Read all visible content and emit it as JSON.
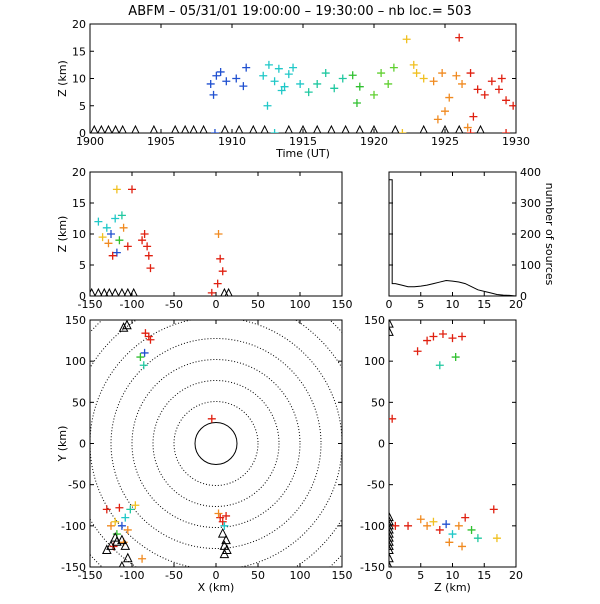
{
  "title": "ABFM – 05/31/01 19:00:00 – 19:30:00 – nb loc.=     503",
  "chart_data": [
    {
      "id": "time_height",
      "type": "scatter",
      "xlabel": "Time (UT)",
      "ylabel": "Z (km)",
      "xlim": [
        1900,
        1930
      ],
      "ylim": [
        0,
        20
      ],
      "xticks": [
        1900,
        1905,
        1910,
        1915,
        1920,
        1925,
        1930
      ],
      "yticks": [
        0,
        5,
        10,
        15,
        20
      ],
      "points": [
        {
          "x": 1908.5,
          "y": 9,
          "c": "#2050d0"
        },
        {
          "x": 1908.9,
          "y": 10.5,
          "c": "#2050d0"
        },
        {
          "x": 1909.2,
          "y": 11.2,
          "c": "#2050d0"
        },
        {
          "x": 1909.6,
          "y": 9.5,
          "c": "#2050d0"
        },
        {
          "x": 1910.3,
          "y": 10,
          "c": "#2050d0"
        },
        {
          "x": 1910.8,
          "y": 8.6,
          "c": "#2050d0"
        },
        {
          "x": 1911.0,
          "y": 12,
          "c": "#2050d0"
        },
        {
          "x": 1908.7,
          "y": 7,
          "c": "#2050d0"
        },
        {
          "x": 1912.2,
          "y": 10.5,
          "c": "#20c8c8"
        },
        {
          "x": 1912.6,
          "y": 12.5,
          "c": "#20c8c8"
        },
        {
          "x": 1913.0,
          "y": 9.5,
          "c": "#20c8c8"
        },
        {
          "x": 1913.3,
          "y": 11.8,
          "c": "#20c8c8"
        },
        {
          "x": 1913.7,
          "y": 8.5,
          "c": "#20c8c8"
        },
        {
          "x": 1914.0,
          "y": 10.8,
          "c": "#20c8c8"
        },
        {
          "x": 1914.3,
          "y": 12,
          "c": "#20c8c8"
        },
        {
          "x": 1914.8,
          "y": 9,
          "c": "#20c8c8"
        },
        {
          "x": 1912.5,
          "y": 5,
          "c": "#20c8c8"
        },
        {
          "x": 1913.5,
          "y": 7.8,
          "c": "#20c8c8"
        },
        {
          "x": 1915.4,
          "y": 7.5,
          "c": "#20c8a0"
        },
        {
          "x": 1916.0,
          "y": 9,
          "c": "#20c8a0"
        },
        {
          "x": 1916.6,
          "y": 11,
          "c": "#20c8a0"
        },
        {
          "x": 1917.2,
          "y": 8.2,
          "c": "#20c8a0"
        },
        {
          "x": 1917.8,
          "y": 10,
          "c": "#20c8a0"
        },
        {
          "x": 1918.5,
          "y": 10.6,
          "c": "#30c030"
        },
        {
          "x": 1919.0,
          "y": 8.5,
          "c": "#30c030"
        },
        {
          "x": 1918.8,
          "y": 5.5,
          "c": "#30c030"
        },
        {
          "x": 1920.0,
          "y": 7,
          "c": "#60d030"
        },
        {
          "x": 1920.5,
          "y": 11,
          "c": "#60d030"
        },
        {
          "x": 1921.0,
          "y": 9,
          "c": "#60d030"
        },
        {
          "x": 1921.4,
          "y": 12,
          "c": "#60d030"
        },
        {
          "x": 1922.3,
          "y": 17.2,
          "c": "#f0c020"
        },
        {
          "x": 1923.0,
          "y": 11,
          "c": "#f0c020"
        },
        {
          "x": 1923.5,
          "y": 10,
          "c": "#f0c020"
        },
        {
          "x": 1922.8,
          "y": 12.5,
          "c": "#f0c020"
        },
        {
          "x": 1924.2,
          "y": 9.5,
          "c": "#f08a20"
        },
        {
          "x": 1924.8,
          "y": 11,
          "c": "#f08a20"
        },
        {
          "x": 1925.3,
          "y": 6.5,
          "c": "#f08a20"
        },
        {
          "x": 1925.8,
          "y": 10.5,
          "c": "#f08a20"
        },
        {
          "x": 1926.2,
          "y": 9,
          "c": "#f08a20"
        },
        {
          "x": 1924.5,
          "y": 2.5,
          "c": "#f08a20"
        },
        {
          "x": 1925.0,
          "y": 4,
          "c": "#f08a20"
        },
        {
          "x": 1926.6,
          "y": 1,
          "c": "#f08a20"
        },
        {
          "x": 1926.0,
          "y": 17.5,
          "c": "#e02010"
        },
        {
          "x": 1926.8,
          "y": 11,
          "c": "#e02010"
        },
        {
          "x": 1927.3,
          "y": 8,
          "c": "#e02010"
        },
        {
          "x": 1927.8,
          "y": 7,
          "c": "#e02010"
        },
        {
          "x": 1928.3,
          "y": 9.5,
          "c": "#e02010"
        },
        {
          "x": 1928.8,
          "y": 8,
          "c": "#e02010"
        },
        {
          "x": 1929.3,
          "y": 6,
          "c": "#e02010"
        },
        {
          "x": 1929.8,
          "y": 5,
          "c": "#e02010"
        },
        {
          "x": 1929.0,
          "y": 10,
          "c": "#e02010"
        },
        {
          "x": 1927.0,
          "y": 3,
          "c": "#e02010"
        },
        {
          "x": 1908.8,
          "y": 0,
          "c": "#2050d0"
        },
        {
          "x": 1913.0,
          "y": 0,
          "c": "#20c8c8"
        },
        {
          "x": 1922.0,
          "y": 0,
          "c": "#f0c020"
        },
        {
          "x": 1926.8,
          "y": 0,
          "c": "#e02010"
        },
        {
          "x": 1929.3,
          "y": 0,
          "c": "#e02010"
        }
      ],
      "triangles": [
        1900.3,
        1900.8,
        1901.3,
        1901.8,
        1902.3,
        1903.2,
        1904.5,
        1906.0,
        1906.7,
        1907.3,
        1908.0,
        1909.5,
        1910.5,
        1911.5,
        1912.3,
        1914.0,
        1915.0,
        1916.0,
        1917.0,
        1918.0,
        1919.0,
        1920.0,
        1921.5,
        1923.5,
        1925.0,
        1926.0,
        1927.5
      ]
    },
    {
      "id": "x_height",
      "type": "scatter",
      "xlabel": "",
      "ylabel": "Z (km)",
      "xlim": [
        -150,
        150
      ],
      "ylim": [
        0,
        20
      ],
      "xticks": [
        -150,
        -100,
        -50,
        0,
        50,
        100,
        150
      ],
      "yticks": [
        0,
        5,
        10,
        15,
        20
      ],
      "points": [
        {
          "x": -118,
          "y": 17.2,
          "c": "#f0c020"
        },
        {
          "x": -100,
          "y": 17.2,
          "c": "#e02010"
        },
        {
          "x": -140,
          "y": 12,
          "c": "#20c8c8"
        },
        {
          "x": -130,
          "y": 11,
          "c": "#20c8c8"
        },
        {
          "x": -125,
          "y": 10,
          "c": "#2050d0"
        },
        {
          "x": -120,
          "y": 12.5,
          "c": "#20c8c8"
        },
        {
          "x": -115,
          "y": 9,
          "c": "#30c030"
        },
        {
          "x": -110,
          "y": 11,
          "c": "#f08a20"
        },
        {
          "x": -105,
          "y": 8,
          "c": "#e02010"
        },
        {
          "x": -128,
          "y": 8.5,
          "c": "#f08a20"
        },
        {
          "x": -135,
          "y": 9.5,
          "c": "#f0c020"
        },
        {
          "x": -118,
          "y": 7,
          "c": "#2050d0"
        },
        {
          "x": -112,
          "y": 13,
          "c": "#20c8a0"
        },
        {
          "x": -123,
          "y": 6.5,
          "c": "#e02010"
        },
        {
          "x": -85,
          "y": 10,
          "c": "#e02010"
        },
        {
          "x": -82,
          "y": 8,
          "c": "#e02010"
        },
        {
          "x": -80,
          "y": 6.5,
          "c": "#e02010"
        },
        {
          "x": -88,
          "y": 9,
          "c": "#e02010"
        },
        {
          "x": -78,
          "y": 4.5,
          "c": "#e02010"
        },
        {
          "x": 3,
          "y": 10,
          "c": "#f08a20"
        },
        {
          "x": 5,
          "y": 6,
          "c": "#e02010"
        },
        {
          "x": 8,
          "y": 4,
          "c": "#e02010"
        },
        {
          "x": 2,
          "y": 2,
          "c": "#e02010"
        },
        {
          "x": -5,
          "y": 0.5,
          "c": "#e02010"
        }
      ],
      "triangles": [
        -148,
        -140,
        -133,
        -127,
        -120,
        -112,
        -105,
        -98,
        10,
        15
      ]
    },
    {
      "id": "altitude_histogram",
      "type": "line",
      "xlabel": "",
      "ylabel": "number of sources",
      "xlim": [
        0,
        20
      ],
      "ylim": [
        0,
        400
      ],
      "xticks": [
        0,
        5,
        10,
        15,
        20
      ],
      "yticks": [
        0,
        100,
        200,
        300,
        400
      ],
      "x": [
        0,
        0.5,
        0.5,
        1,
        2,
        3,
        4,
        5,
        6,
        7,
        8,
        9,
        10,
        11,
        12,
        13,
        14,
        15,
        16,
        17,
        18,
        19,
        20
      ],
      "y": [
        375,
        375,
        40,
        40,
        35,
        30,
        30,
        32,
        35,
        40,
        45,
        50,
        48,
        45,
        40,
        30,
        20,
        15,
        10,
        5,
        3,
        2,
        0
      ]
    },
    {
      "id": "plan_view",
      "type": "scatter",
      "xlabel": "X (km)",
      "ylabel": "Y (km)",
      "xlim": [
        -150,
        150
      ],
      "ylim": [
        -150,
        150
      ],
      "xticks": [
        -150,
        -100,
        -50,
        0,
        50,
        100,
        150
      ],
      "yticks": [
        -150,
        -100,
        -50,
        0,
        50,
        100,
        150
      ],
      "rings": [
        25,
        50,
        75,
        100,
        125,
        150,
        175,
        200
      ],
      "points": [
        {
          "x": -80,
          "y": 130,
          "c": "#e02010"
        },
        {
          "x": -84,
          "y": 134,
          "c": "#e02010"
        },
        {
          "x": -78,
          "y": 126,
          "c": "#e02010"
        },
        {
          "x": -85,
          "y": 110,
          "c": "#2050d0"
        },
        {
          "x": -90,
          "y": 105,
          "c": "#30c030"
        },
        {
          "x": -86,
          "y": 95,
          "c": "#20c8a0"
        },
        {
          "x": -5,
          "y": 30,
          "c": "#e02010"
        },
        {
          "x": -130,
          "y": -80,
          "c": "#e02010"
        },
        {
          "x": -125,
          "y": -100,
          "c": "#f08a20"
        },
        {
          "x": -120,
          "y": -95,
          "c": "#f0c020"
        },
        {
          "x": -118,
          "y": -110,
          "c": "#30c030"
        },
        {
          "x": -112,
          "y": -100,
          "c": "#2050d0"
        },
        {
          "x": -108,
          "y": -90,
          "c": "#20c8c8"
        },
        {
          "x": -110,
          "y": -120,
          "c": "#f08a20"
        },
        {
          "x": -102,
          "y": -80,
          "c": "#20c8a0"
        },
        {
          "x": -96,
          "y": -75,
          "c": "#f0c020"
        },
        {
          "x": -122,
          "y": -125,
          "c": "#e02010"
        },
        {
          "x": -115,
          "y": -78,
          "c": "#e02010"
        },
        {
          "x": -88,
          "y": -140,
          "c": "#f08a20"
        },
        {
          "x": -105,
          "y": -105,
          "c": "#f08a20"
        },
        {
          "x": 5,
          "y": -90,
          "c": "#e02010"
        },
        {
          "x": 8,
          "y": -95,
          "c": "#e02010"
        },
        {
          "x": 3,
          "y": -85,
          "c": "#f08a20"
        },
        {
          "x": 10,
          "y": -100,
          "c": "#20c8c8"
        },
        {
          "x": 12,
          "y": -88,
          "c": "#e02010"
        }
      ],
      "triangles": [
        {
          "x": -110,
          "y": 140
        },
        {
          "x": -106,
          "y": 143
        },
        {
          "x": -130,
          "y": -130
        },
        {
          "x": -125,
          "y": -125
        },
        {
          "x": -118,
          "y": -120
        },
        {
          "x": -112,
          "y": -118
        },
        {
          "x": -108,
          "y": -125
        },
        {
          "x": -120,
          "y": -115
        },
        {
          "x": -105,
          "y": -140
        },
        {
          "x": -112,
          "y": -150
        },
        {
          "x": 10,
          "y": -125
        },
        {
          "x": 12,
          "y": -118
        },
        {
          "x": 13,
          "y": -130
        },
        {
          "x": 10,
          "y": -135
        },
        {
          "x": 8,
          "y": -110
        }
      ]
    },
    {
      "id": "z_y_view",
      "type": "scatter",
      "xlabel": "Z (km)",
      "ylabel": "",
      "xlim": [
        0,
        20
      ],
      "ylim": [
        -150,
        150
      ],
      "xticks": [
        0,
        5,
        10,
        15,
        20
      ],
      "yticks": [
        -150,
        -100,
        -50,
        0,
        50,
        100,
        150
      ],
      "points": [
        {
          "x": 7,
          "y": 130,
          "c": "#e02010"
        },
        {
          "x": 8.5,
          "y": 133,
          "c": "#e02010"
        },
        {
          "x": 10,
          "y": 128,
          "c": "#e02010"
        },
        {
          "x": 11.5,
          "y": 130,
          "c": "#e02010"
        },
        {
          "x": 6,
          "y": 125,
          "c": "#e02010"
        },
        {
          "x": 4.5,
          "y": 112,
          "c": "#e02010"
        },
        {
          "x": 10.5,
          "y": 105,
          "c": "#30c030"
        },
        {
          "x": 8,
          "y": 95,
          "c": "#20c8a0"
        },
        {
          "x": 0.5,
          "y": 30,
          "c": "#e02010"
        },
        {
          "x": 6,
          "y": -100,
          "c": "#f08a20"
        },
        {
          "x": 7,
          "y": -95,
          "c": "#f0c020"
        },
        {
          "x": 8,
          "y": -105,
          "c": "#e02010"
        },
        {
          "x": 9,
          "y": -98,
          "c": "#2050d0"
        },
        {
          "x": 10,
          "y": -110,
          "c": "#20c8c8"
        },
        {
          "x": 11,
          "y": -100,
          "c": "#f08a20"
        },
        {
          "x": 12,
          "y": -90,
          "c": "#e02010"
        },
        {
          "x": 13,
          "y": -105,
          "c": "#30c030"
        },
        {
          "x": 9.5,
          "y": -120,
          "c": "#f08a20"
        },
        {
          "x": 11.5,
          "y": -125,
          "c": "#f08a20"
        },
        {
          "x": 14,
          "y": -115,
          "c": "#20c8a0"
        },
        {
          "x": 16.5,
          "y": -80,
          "c": "#e02010"
        },
        {
          "x": 17,
          "y": -115,
          "c": "#f0c020"
        },
        {
          "x": 5,
          "y": -92,
          "c": "#f08a20"
        },
        {
          "x": 3,
          "y": -100,
          "c": "#e02010"
        },
        {
          "x": 1,
          "y": -100,
          "c": "#e02010"
        }
      ],
      "triangles": [
        {
          "x": 0,
          "y": 145
        },
        {
          "x": 0,
          "y": 135
        },
        {
          "x": 0,
          "y": -90
        },
        {
          "x": 0,
          "y": -95
        },
        {
          "x": 0,
          "y": -100
        },
        {
          "x": 0,
          "y": -105
        },
        {
          "x": 0,
          "y": -110
        },
        {
          "x": 0,
          "y": -115
        },
        {
          "x": 0,
          "y": -120
        },
        {
          "x": 0,
          "y": -125
        },
        {
          "x": 0,
          "y": -130
        },
        {
          "x": 0,
          "y": -140
        },
        {
          "x": 0,
          "y": -150
        }
      ]
    }
  ]
}
